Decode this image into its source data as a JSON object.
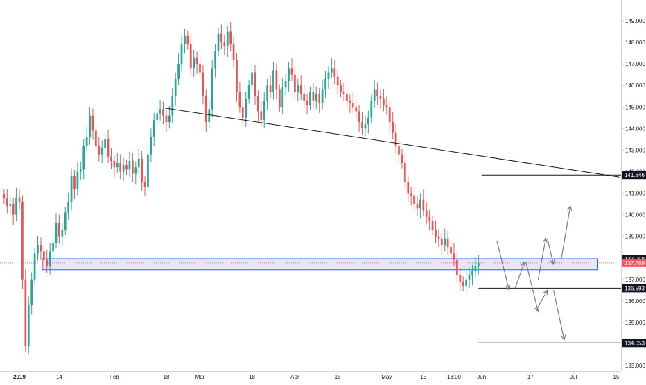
{
  "chart_data": {
    "type": "candlestick",
    "title": "",
    "xlabel": "",
    "ylabel": "",
    "ylim": [
      132.8,
      149.6
    ],
    "grid": false,
    "colors": {
      "up": "#26a69a",
      "down": "#ef5350",
      "zone_fill": "#c9d7f0",
      "zone_border": "#2962ff",
      "price_line": "#f7525f",
      "drawing": "#131722",
      "arrow": "#787b86",
      "axis_border": "#d1d4dc"
    },
    "y_ticks": [
      "149.000",
      "148.000",
      "147.000",
      "146.000",
      "145.000",
      "144.000",
      "143.000",
      "142.000",
      "141.000",
      "140.000",
      "139.000",
      "138.000",
      "137.000",
      "136.000",
      "135.000",
      "134.000",
      "133.000"
    ],
    "x_ticks": [
      {
        "label": "2019",
        "bold": true,
        "day": 0
      },
      {
        "label": "14",
        "bold": false,
        "day": 13
      },
      {
        "label": "Feb",
        "bold": false,
        "day": 31
      },
      {
        "label": "18",
        "bold": false,
        "day": 48
      },
      {
        "label": "Mar",
        "bold": false,
        "day": 59
      },
      {
        "label": "18",
        "bold": false,
        "day": 76
      },
      {
        "label": "Apr",
        "bold": false,
        "day": 90
      },
      {
        "label": "15",
        "bold": false,
        "day": 104
      },
      {
        "label": "May",
        "bold": false,
        "day": 120
      },
      {
        "label": "13",
        "bold": false,
        "day": 132
      },
      {
        "label": "13:00",
        "bold": false,
        "day": 142
      },
      {
        "label": "Jun",
        "bold": false,
        "day": 151
      },
      {
        "label": "17",
        "bold": false,
        "day": 167
      },
      {
        "label": "Jul",
        "bold": false,
        "day": 181
      },
      {
        "label": "15",
        "bold": false,
        "day": 195
      }
    ],
    "x_range": [
      -6,
      202
    ],
    "price_tags": [
      {
        "label": "141.846",
        "value": 141.846,
        "style": "black"
      },
      {
        "label": "137.958",
        "value": 137.958,
        "style": "black"
      },
      {
        "label": "137.769",
        "value": 137.769,
        "style": "red"
      },
      {
        "label": "136.593",
        "value": 136.593,
        "style": "black"
      },
      {
        "label": "134.053",
        "value": 134.053,
        "style": "black"
      }
    ],
    "current_price": 137.769,
    "zone": {
      "top": 137.958,
      "bottom": 137.45,
      "day_start": 7.5,
      "day_end": 189
    },
    "horizontal_lines": [
      {
        "value": 141.846,
        "day_start": 151,
        "day_end": 202
      },
      {
        "value": 136.593,
        "day_start": 150,
        "day_end": 202
      },
      {
        "value": 134.053,
        "day_start": 150,
        "day_end": 202
      }
    ],
    "trend_line": {
      "day1": 47.5,
      "value1": 144.95,
      "day2": 196,
      "value2": 141.75
    },
    "forecast_arrows": [
      {
        "d1": 156,
        "v1": 138.8,
        "d2": 160,
        "v2": 136.5
      },
      {
        "d1": 162,
        "v1": 136.6,
        "d2": 165,
        "v2": 137.8
      },
      {
        "d1": 165.5,
        "v1": 137.8,
        "d2": 169.5,
        "v2": 135.5
      },
      {
        "d1": 169,
        "v1": 135.6,
        "d2": 172.5,
        "v2": 136.5
      },
      {
        "d1": 169.5,
        "v1": 137.0,
        "d2": 172,
        "v2": 138.9
      },
      {
        "d1": 172.5,
        "v1": 138.9,
        "d2": 174.5,
        "v2": 137.7
      },
      {
        "d1": 174.5,
        "v1": 136.5,
        "d2": 178,
        "v2": 134.2
      },
      {
        "d1": 177,
        "v1": 137.9,
        "d2": 180,
        "v2": 140.4
      }
    ],
    "series": [
      {
        "day": -5,
        "value": 140.75
      },
      {
        "day": -4,
        "value": 140.4
      },
      {
        "day": -3,
        "value": 140.5
      },
      {
        "day": -2,
        "value": 140.0
      },
      {
        "day": -1,
        "value": 140.8
      },
      {
        "day": 0,
        "value": 140.6
      },
      {
        "day": 1,
        "value": 137.0
      },
      {
        "day": 2,
        "value": 133.9
      },
      {
        "day": 3,
        "value": 135.8
      },
      {
        "day": 4,
        "value": 137.0
      },
      {
        "day": 5,
        "value": 138.2
      },
      {
        "day": 6,
        "value": 138.6
      },
      {
        "day": 7,
        "value": 138.3
      },
      {
        "day": 8,
        "value": 137.9
      },
      {
        "day": 9,
        "value": 137.6
      },
      {
        "day": 10,
        "value": 138.3
      },
      {
        "day": 11,
        "value": 138.7
      },
      {
        "day": 12,
        "value": 139.6
      },
      {
        "day": 13,
        "value": 139.0
      },
      {
        "day": 14,
        "value": 139.3
      },
      {
        "day": 15,
        "value": 140.1
      },
      {
        "day": 16,
        "value": 140.6
      },
      {
        "day": 17,
        "value": 141.8
      },
      {
        "day": 18,
        "value": 141.2
      },
      {
        "day": 19,
        "value": 142.0
      },
      {
        "day": 20,
        "value": 142.1
      },
      {
        "day": 21,
        "value": 143.2
      },
      {
        "day": 22,
        "value": 143.6
      },
      {
        "day": 23,
        "value": 144.6
      },
      {
        "day": 24,
        "value": 143.9
      },
      {
        "day": 25,
        "value": 143.2
      },
      {
        "day": 26,
        "value": 142.8
      },
      {
        "day": 27,
        "value": 143.1
      },
      {
        "day": 28,
        "value": 143.5
      },
      {
        "day": 29,
        "value": 142.7
      },
      {
        "day": 30,
        "value": 142.5
      },
      {
        "day": 31,
        "value": 142.2
      },
      {
        "day": 32,
        "value": 142.4
      },
      {
        "day": 33,
        "value": 142.0
      },
      {
        "day": 34,
        "value": 142.3
      },
      {
        "day": 35,
        "value": 142.1
      },
      {
        "day": 36,
        "value": 142.5
      },
      {
        "day": 37,
        "value": 141.9
      },
      {
        "day": 38,
        "value": 142.2
      },
      {
        "day": 39,
        "value": 142.6
      },
      {
        "day": 40,
        "value": 141.5
      },
      {
        "day": 41,
        "value": 141.3
      },
      {
        "day": 42,
        "value": 142.8
      },
      {
        "day": 43,
        "value": 143.6
      },
      {
        "day": 44,
        "value": 144.4
      },
      {
        "day": 45,
        "value": 144.7
      },
      {
        "day": 46,
        "value": 144.9
      },
      {
        "day": 47,
        "value": 144.6
      },
      {
        "day": 48,
        "value": 144.3
      },
      {
        "day": 49,
        "value": 144.6
      },
      {
        "day": 50,
        "value": 145.5
      },
      {
        "day": 51,
        "value": 146.3
      },
      {
        "day": 52,
        "value": 147.0
      },
      {
        "day": 53,
        "value": 147.9
      },
      {
        "day": 54,
        "value": 148.3
      },
      {
        "day": 55,
        "value": 147.9
      },
      {
        "day": 56,
        "value": 146.8
      },
      {
        "day": 57,
        "value": 147.3
      },
      {
        "day": 58,
        "value": 147.0
      },
      {
        "day": 59,
        "value": 146.6
      },
      {
        "day": 60,
        "value": 145.5
      },
      {
        "day": 61,
        "value": 144.3
      },
      {
        "day": 62,
        "value": 144.9
      },
      {
        "day": 63,
        "value": 146.8
      },
      {
        "day": 64,
        "value": 147.6
      },
      {
        "day": 65,
        "value": 148.4
      },
      {
        "day": 66,
        "value": 148.0
      },
      {
        "day": 67,
        "value": 147.8
      },
      {
        "day": 68,
        "value": 148.5
      },
      {
        "day": 69,
        "value": 147.9
      },
      {
        "day": 70,
        "value": 147.2
      },
      {
        "day": 71,
        "value": 145.7
      },
      {
        "day": 72,
        "value": 145.0
      },
      {
        "day": 73,
        "value": 144.5
      },
      {
        "day": 74,
        "value": 145.4
      },
      {
        "day": 75,
        "value": 146.0
      },
      {
        "day": 76,
        "value": 146.6
      },
      {
        "day": 77,
        "value": 145.5
      },
      {
        "day": 78,
        "value": 144.8
      },
      {
        "day": 79,
        "value": 144.4
      },
      {
        "day": 80,
        "value": 145.3
      },
      {
        "day": 81,
        "value": 146.0
      },
      {
        "day": 82,
        "value": 145.7
      },
      {
        "day": 83,
        "value": 146.7
      },
      {
        "day": 84,
        "value": 145.8
      },
      {
        "day": 85,
        "value": 145.0
      },
      {
        "day": 86,
        "value": 145.9
      },
      {
        "day": 87,
        "value": 146.2
      },
      {
        "day": 88,
        "value": 146.8
      },
      {
        "day": 89,
        "value": 146.5
      },
      {
        "day": 90,
        "value": 145.7
      },
      {
        "day": 91,
        "value": 146.0
      },
      {
        "day": 92,
        "value": 145.6
      },
      {
        "day": 93,
        "value": 145.3
      },
      {
        "day": 94,
        "value": 145.1
      },
      {
        "day": 95,
        "value": 145.7
      },
      {
        "day": 96,
        "value": 145.3
      },
      {
        "day": 97,
        "value": 145.6
      },
      {
        "day": 98,
        "value": 145.2
      },
      {
        "day": 99,
        "value": 145.8
      },
      {
        "day": 100,
        "value": 146.3
      },
      {
        "day": 101,
        "value": 146.6
      },
      {
        "day": 102,
        "value": 146.8
      },
      {
        "day": 103,
        "value": 146.4
      },
      {
        "day": 104,
        "value": 146.0
      },
      {
        "day": 105,
        "value": 145.7
      },
      {
        "day": 106,
        "value": 145.6
      },
      {
        "day": 107,
        "value": 145.3
      },
      {
        "day": 108,
        "value": 145.2
      },
      {
        "day": 109,
        "value": 145.0
      },
      {
        "day": 110,
        "value": 144.8
      },
      {
        "day": 111,
        "value": 144.3
      },
      {
        "day": 112,
        "value": 144.0
      },
      {
        "day": 113,
        "value": 144.2
      },
      {
        "day": 114,
        "value": 144.5
      },
      {
        "day": 115,
        "value": 145.3
      },
      {
        "day": 116,
        "value": 145.8
      },
      {
        "day": 117,
        "value": 145.5
      },
      {
        "day": 118,
        "value": 145.4
      },
      {
        "day": 119,
        "value": 145.1
      },
      {
        "day": 120,
        "value": 145.0
      },
      {
        "day": 121,
        "value": 144.3
      },
      {
        "day": 122,
        "value": 143.8
      },
      {
        "day": 123,
        "value": 143.2
      },
      {
        "day": 124,
        "value": 142.8
      },
      {
        "day": 125,
        "value": 142.4
      },
      {
        "day": 126,
        "value": 141.5
      },
      {
        "day": 127,
        "value": 141.0
      },
      {
        "day": 128,
        "value": 140.9
      },
      {
        "day": 129,
        "value": 140.5
      },
      {
        "day": 130,
        "value": 140.3
      },
      {
        "day": 131,
        "value": 140.7
      },
      {
        "day": 132,
        "value": 140.2
      },
      {
        "day": 133,
        "value": 139.9
      },
      {
        "day": 134,
        "value": 139.7
      },
      {
        "day": 135,
        "value": 139.3
      },
      {
        "day": 136,
        "value": 139.0
      },
      {
        "day": 137,
        "value": 138.9
      },
      {
        "day": 138,
        "value": 138.6
      },
      {
        "day": 139,
        "value": 138.9
      },
      {
        "day": 140,
        "value": 138.5
      },
      {
        "day": 141,
        "value": 138.2
      },
      {
        "day": 142,
        "value": 137.9
      },
      {
        "day": 143,
        "value": 137.2
      },
      {
        "day": 144,
        "value": 136.9
      },
      {
        "day": 145,
        "value": 136.7
      },
      {
        "day": 146,
        "value": 137.0
      },
      {
        "day": 147,
        "value": 137.2
      },
      {
        "day": 148,
        "value": 137.4
      },
      {
        "day": 149,
        "value": 137.6
      },
      {
        "day": 150,
        "value": 137.769
      }
    ]
  }
}
